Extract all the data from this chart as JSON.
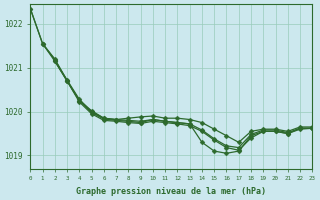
{
  "xlabel": "Graphe pression niveau de la mer (hPa)",
  "bg_color": "#cce8ee",
  "grid_color": "#99ccbb",
  "line_color": "#2d6a2d",
  "xlim": [
    0,
    23
  ],
  "ylim": [
    1018.7,
    1022.45
  ],
  "yticks": [
    1019,
    1020,
    1021,
    1022
  ],
  "xticks": [
    0,
    1,
    2,
    3,
    4,
    5,
    6,
    7,
    8,
    9,
    10,
    11,
    12,
    13,
    14,
    15,
    16,
    17,
    18,
    19,
    20,
    21,
    22,
    23
  ],
  "line1_x": [
    0,
    1,
    2,
    3,
    4,
    5,
    6,
    7,
    8,
    9,
    10,
    11,
    12,
    13,
    14,
    15,
    16,
    17,
    18,
    19,
    20,
    21,
    22,
    23
  ],
  "line1_y": [
    1022.35,
    1021.55,
    1021.2,
    1020.7,
    1020.25,
    1020.02,
    1019.85,
    1019.82,
    1019.85,
    1019.88,
    1019.9,
    1019.85,
    1019.85,
    1019.82,
    1019.75,
    1019.6,
    1019.45,
    1019.3,
    1019.55,
    1019.6,
    1019.6,
    1019.55,
    1019.65,
    1019.65
  ],
  "line2_x": [
    0,
    1,
    2,
    3,
    4,
    5,
    6,
    7,
    8,
    9,
    10,
    11,
    12,
    13,
    14,
    15,
    16,
    17,
    18,
    19,
    20,
    21,
    22,
    23
  ],
  "line2_y": [
    1022.35,
    1021.55,
    1021.18,
    1020.72,
    1020.28,
    1020.0,
    1019.85,
    1019.82,
    1019.8,
    1019.78,
    1019.82,
    1019.78,
    1019.75,
    1019.72,
    1019.58,
    1019.38,
    1019.22,
    1019.18,
    1019.48,
    1019.58,
    1019.58,
    1019.52,
    1019.62,
    1019.62
  ],
  "line3_x": [
    2,
    3,
    4,
    5,
    6,
    7,
    8,
    9,
    10,
    11,
    12,
    13,
    14,
    15,
    16,
    17,
    18,
    19,
    20,
    21,
    22,
    23
  ],
  "line3_y": [
    1021.15,
    1020.7,
    1020.22,
    1019.95,
    1019.8,
    1019.78,
    1019.75,
    1019.73,
    1019.78,
    1019.75,
    1019.72,
    1019.68,
    1019.55,
    1019.35,
    1019.18,
    1019.12,
    1019.4,
    1019.55,
    1019.55,
    1019.5,
    1019.62,
    1019.62
  ],
  "line4_x": [
    1,
    2,
    3,
    4,
    5,
    6,
    7,
    8,
    9,
    10,
    11,
    12,
    13,
    14,
    15,
    16,
    17,
    18,
    19,
    20,
    21,
    22,
    23
  ],
  "line4_y": [
    1021.55,
    1021.15,
    1020.7,
    1020.25,
    1019.98,
    1019.83,
    1019.8,
    1019.78,
    1019.75,
    1019.82,
    1019.78,
    1019.75,
    1019.72,
    1019.3,
    1019.1,
    1019.05,
    1019.1,
    1019.45,
    1019.55,
    1019.55,
    1019.5,
    1019.6,
    1019.62
  ]
}
